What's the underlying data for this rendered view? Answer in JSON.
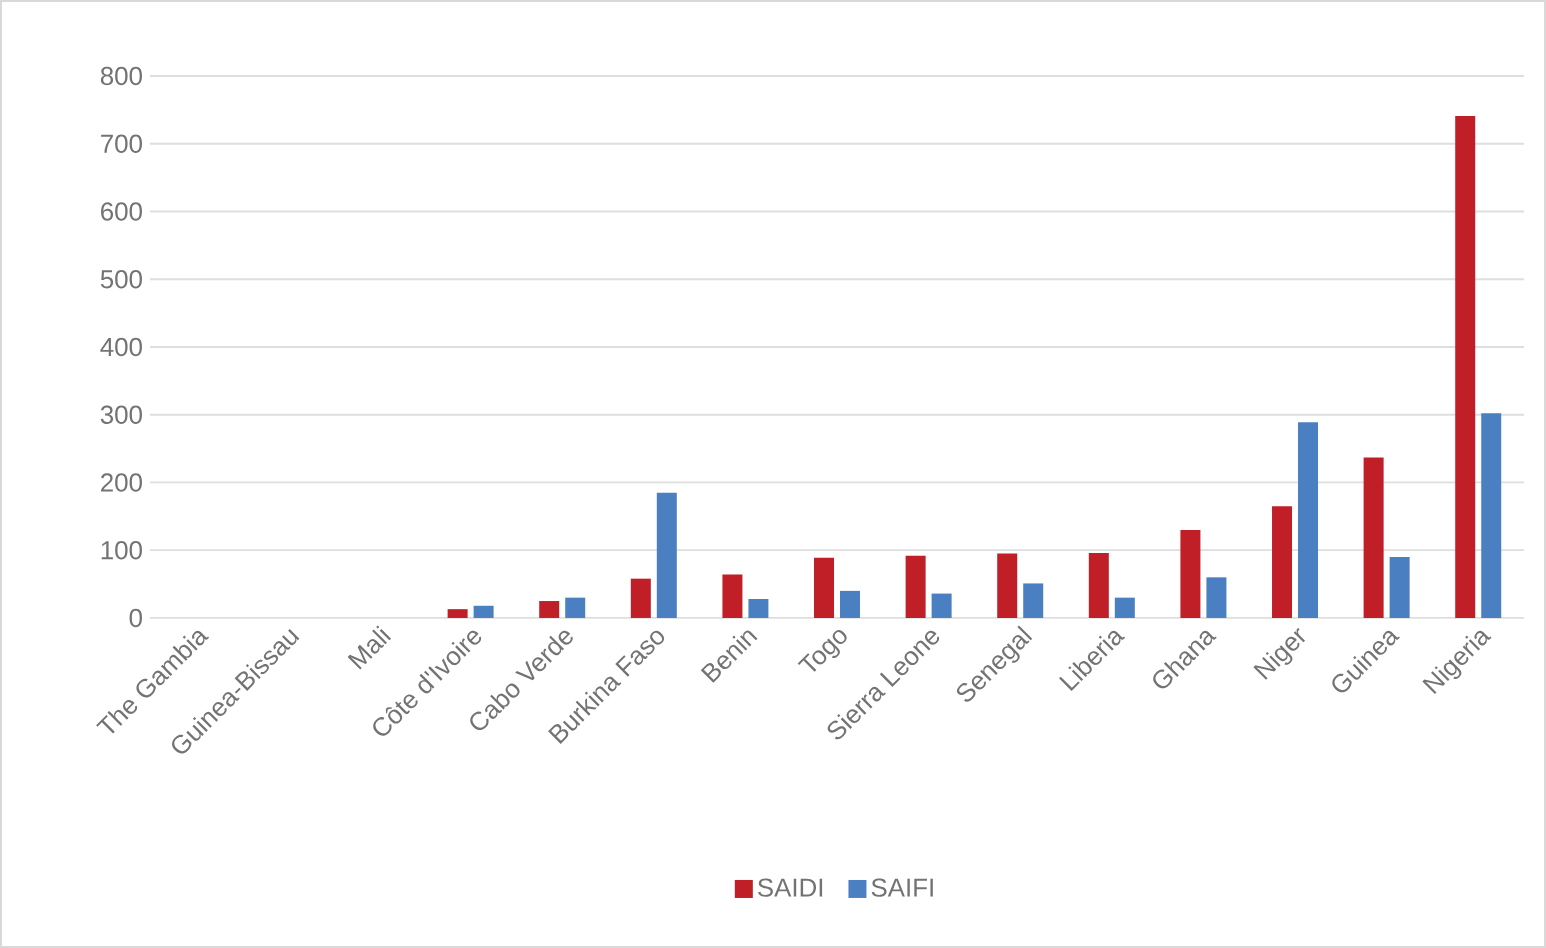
{
  "chart_data": {
    "type": "bar",
    "categories": [
      "The Gambia",
      "Guinea-Bissau",
      "Mali",
      "Côte d'Ivoire",
      "Cabo Verde",
      "Burkina Faso",
      "Benin",
      "Togo",
      "Sierra Leone",
      "Senegal",
      "Liberia",
      "Ghana",
      "Niger",
      "Guinea",
      "Nigeria"
    ],
    "series": [
      {
        "name": "SAIDI",
        "color": "#c01f27",
        "values": [
          0,
          0,
          0,
          13,
          25,
          58,
          64,
          89,
          92,
          95,
          96,
          130,
          165,
          237,
          741
        ]
      },
      {
        "name": "SAIFI",
        "color": "#4a80c1",
        "values": [
          0,
          0,
          0,
          18,
          30,
          185,
          28,
          40,
          36,
          51,
          30,
          60,
          289,
          90,
          302
        ]
      }
    ],
    "ylim": [
      0,
      800
    ],
    "yticks": [
      0,
      100,
      200,
      300,
      400,
      500,
      600,
      700,
      800
    ],
    "grid": "y",
    "legend": "bottom"
  }
}
